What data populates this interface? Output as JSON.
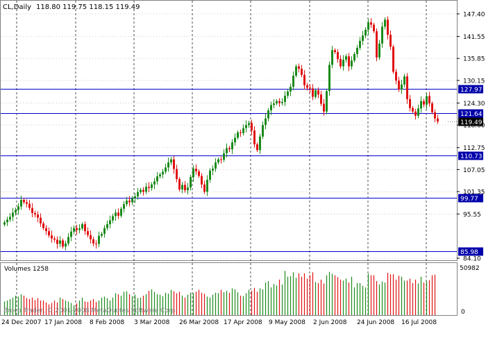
{
  "header": {
    "symbol": "CL,Daily",
    "ohlc": "118.80 119.75 118.15 119.49"
  },
  "volume_panel": {
    "label": "Volumes 1258",
    "max_label": "50982",
    "zero_label": "0"
  },
  "copyright": "Broco Trader, © 2001-2008 MetaQuotes Software Corp.",
  "colors": {
    "bull": "#1a8a1a",
    "bear": "#e01010",
    "level_line": "#0000cc",
    "level_box": "#0000aa",
    "current_box": "#000000",
    "vgrid": "#000000",
    "hgrid": "#c8c8c8"
  },
  "chart_data": {
    "type": "candlestick",
    "title": "CL,Daily",
    "price_axis": {
      "ticks": [
        "147.40",
        "141.55",
        "135.85",
        "130.15",
        "124.30",
        "118.60",
        "112.75",
        "107.05",
        "101.35",
        "95.55",
        "84.10"
      ],
      "ylim": [
        84.1,
        147.4
      ]
    },
    "date_axis": {
      "ticks": [
        "24 Dec 2007",
        "17 Jan 2008",
        "8 Feb 2008",
        "3 Mar 2008",
        "26 Mar 2008",
        "17 Apr 2008",
        "9 May 2008",
        "2 Jun 2008",
        "24 Jun 2008",
        "16 Jul 2008"
      ]
    },
    "levels": [
      "127.97",
      "121.64",
      "110.73",
      "99.77",
      "85.98"
    ],
    "current_price": "119.49",
    "closes": [
      93.4,
      94.1,
      94.8,
      95.9,
      96.6,
      97.5,
      99.2,
      98.6,
      98.2,
      97.1,
      95.8,
      95.4,
      94.6,
      93.1,
      91.9,
      91.1,
      90.0,
      89.2,
      88.9,
      87.8,
      88.7,
      87.1,
      87.9,
      89.6,
      91.0,
      91.9,
      91.4,
      91.8,
      92.9,
      91.1,
      90.1,
      89.0,
      87.9,
      87.8,
      89.9,
      90.4,
      91.9,
      92.9,
      93.9,
      95.0,
      95.9,
      95.1,
      96.9,
      98.1,
      99.0,
      98.6,
      99.6,
      100.1,
      101.2,
      101.8,
      101.3,
      102.6,
      102.3,
      103.2,
      104.0,
      105.3,
      105.8,
      106.5,
      107.6,
      108.9,
      109.7,
      107.2,
      104.6,
      101.9,
      103.1,
      101.7,
      102.4,
      105.1,
      107.3,
      106.6,
      105.4,
      103.2,
      101.3,
      104.4,
      106.8,
      107.3,
      108.9,
      109.7,
      109.6,
      111.3,
      112.6,
      112.3,
      114.1,
      115.3,
      116.7,
      116.5,
      117.8,
      118.6,
      119.1,
      117.2,
      113.6,
      112.1,
      115.6,
      118.6,
      120.3,
      122.4,
      123.8,
      124.2,
      124.8,
      124.3,
      124.6,
      126.2,
      127.3,
      128.5,
      131.4,
      133.8,
      133.2,
      131.6,
      128.9,
      128.3,
      128.1,
      125.9,
      127.6,
      126.5,
      124.1,
      122.1,
      127.4,
      134.2,
      138.0,
      137.5,
      135.7,
      133.8,
      135.5,
      136.4,
      133.8,
      135.3,
      137.0,
      138.6,
      140.4,
      141.8,
      143.3,
      145.2,
      144.6,
      142.9,
      136.1,
      139.7,
      144.1,
      145.9,
      142.0,
      138.9,
      132.4,
      130.1,
      127.8,
      129.1,
      131.2,
      125.3,
      123.0,
      122.1,
      121.0,
      122.9,
      124.8,
      123.9,
      126.1,
      124.2,
      121.9,
      120.3,
      119.49
    ],
    "volume_max": 50982,
    "volumes": [
      0.28,
      0.3,
      0.33,
      0.36,
      0.4,
      0.38,
      0.43,
      0.4,
      0.35,
      0.33,
      0.36,
      0.31,
      0.35,
      0.3,
      0.3,
      0.26,
      0.22,
      0.25,
      0.3,
      0.26,
      0.36,
      0.33,
      0.3,
      0.28,
      0.25,
      0.2,
      0.24,
      0.3,
      0.36,
      0.28,
      0.27,
      0.3,
      0.33,
      0.27,
      0.3,
      0.36,
      0.38,
      0.35,
      0.3,
      0.36,
      0.45,
      0.43,
      0.4,
      0.48,
      0.49,
      0.43,
      0.39,
      0.42,
      0.35,
      0.36,
      0.4,
      0.43,
      0.5,
      0.53,
      0.48,
      0.43,
      0.42,
      0.39,
      0.46,
      0.44,
      0.52,
      0.49,
      0.45,
      0.48,
      0.4,
      0.36,
      0.42,
      0.46,
      0.45,
      0.48,
      0.52,
      0.46,
      0.44,
      0.38,
      0.36,
      0.42,
      0.46,
      0.45,
      0.52,
      0.47,
      0.5,
      0.46,
      0.55,
      0.53,
      0.47,
      0.4,
      0.39,
      0.45,
      0.52,
      0.5,
      0.56,
      0.48,
      0.55,
      0.53,
      0.67,
      0.7,
      0.57,
      0.64,
      0.61,
      0.73,
      0.63,
      0.91,
      0.79,
      0.8,
      0.88,
      0.77,
      0.86,
      0.79,
      0.86,
      0.75,
      0.82,
      0.88,
      0.68,
      0.66,
      0.73,
      0.65,
      0.82,
      0.89,
      0.85,
      0.82,
      0.78,
      0.73,
      0.71,
      0.75,
      0.67,
      0.79,
      0.57,
      0.66,
      0.66,
      0.6,
      0.57,
      0.85,
      0.82,
      0.82,
      0.7,
      0.63,
      0.69,
      0.67,
      0.87,
      0.84,
      0.84,
      0.73,
      0.81,
      0.79,
      0.71,
      0.71,
      0.75,
      0.66,
      0.73,
      0.65,
      0.79,
      0.67,
      0.7,
      0.72,
      0.82,
      0.83,
      0.0
    ]
  }
}
